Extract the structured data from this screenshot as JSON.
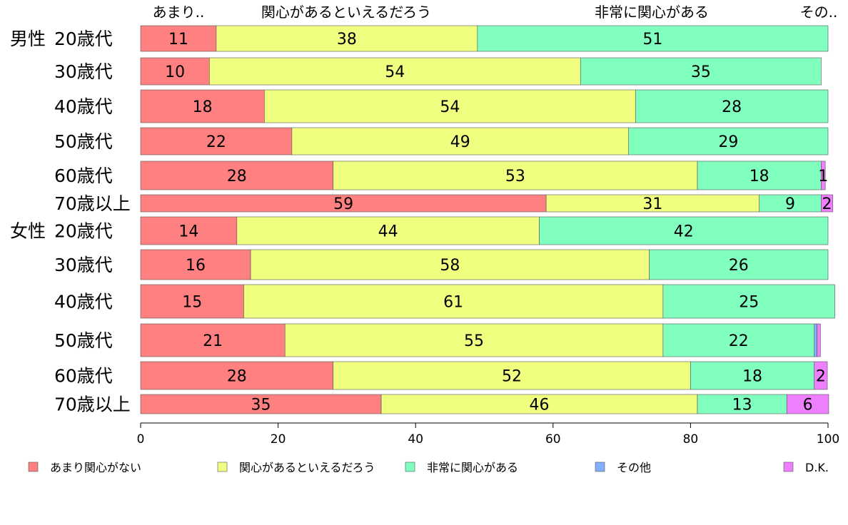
{
  "chart_data": {
    "type": "bar",
    "orientation": "horizontal",
    "stacked": true,
    "xlim": [
      0,
      100
    ],
    "x_ticks": [
      "0",
      "20",
      "40",
      "60",
      "80",
      "100"
    ],
    "top_labels": [
      "あまり..",
      "関心があるといえるだろう",
      "非常に関心がある",
      "その.."
    ],
    "groups": [
      {
        "label": "男性",
        "categories": [
          "20歳代",
          "30歳代",
          "40歳代",
          "50歳代",
          "60歳代",
          "70歳以上"
        ]
      },
      {
        "label": "女性",
        "categories": [
          "20歳代",
          "30歳代",
          "40歳代",
          "50歳代",
          "60歳代",
          "70歳以上"
        ]
      }
    ],
    "series": [
      {
        "name": "あまり関心がない",
        "color": "#ff8080",
        "values": [
          11,
          10,
          18,
          22,
          28,
          59,
          14,
          16,
          15,
          21,
          28,
          35
        ],
        "labels": [
          "11",
          "10",
          "18",
          "22",
          "28",
          "59",
          "14",
          "16",
          "15",
          "21",
          "28",
          "35"
        ]
      },
      {
        "name": "関心があるといえるだろう",
        "color": "#f0ff80",
        "values": [
          38,
          54,
          54,
          49,
          53,
          31,
          44,
          58,
          61,
          55,
          52,
          46
        ],
        "labels": [
          "38",
          "54",
          "54",
          "49",
          "53",
          "31",
          "44",
          "58",
          "61",
          "55",
          "52",
          "46"
        ]
      },
      {
        "name": "非常に関心がある",
        "color": "#80ffbf",
        "values": [
          51,
          35,
          28,
          29,
          18,
          9,
          42,
          26,
          25,
          22,
          18,
          13
        ],
        "labels": [
          "51",
          "35",
          "28",
          "29",
          "18",
          "9",
          "42",
          "26",
          "25",
          "22",
          "18",
          "13"
        ]
      },
      {
        "name": "その他",
        "color": "#80b0ff",
        "values": [
          0,
          0,
          0,
          0,
          0,
          0,
          0,
          0,
          0,
          0.4,
          0,
          0
        ],
        "labels": [
          "",
          "",
          "",
          "",
          "",
          "",
          "",
          "",
          "",
          "",
          "",
          ""
        ]
      },
      {
        "name": "D.K.",
        "color": "#ee80ff",
        "values": [
          0,
          0,
          0,
          0,
          0.6,
          1.7,
          0,
          0,
          0,
          0.5,
          1.9,
          6.1
        ],
        "labels": [
          "",
          "",
          "",
          "",
          "1",
          "2",
          "",
          "",
          "",
          "",
          "2",
          "6"
        ]
      }
    ],
    "legend_position": "bottom",
    "grid": false
  }
}
